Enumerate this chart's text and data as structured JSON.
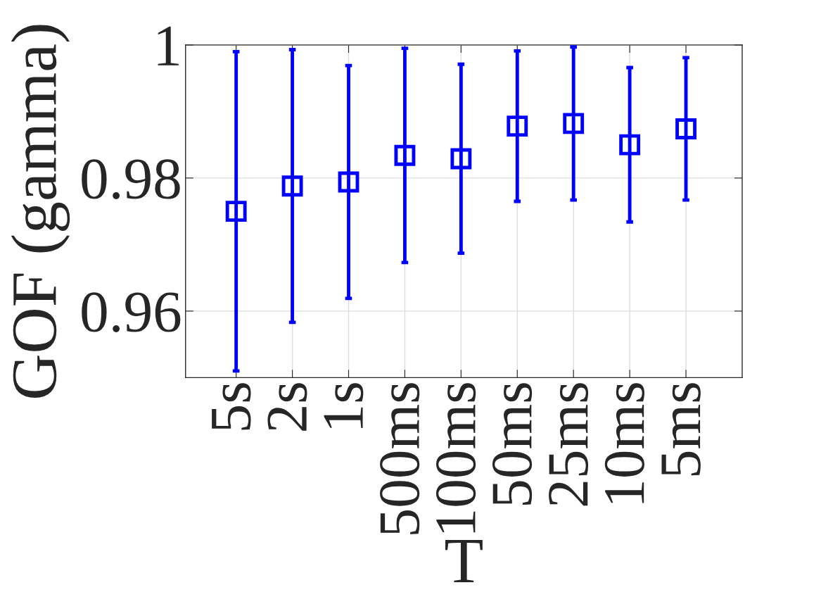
{
  "chart_data": {
    "type": "scatter",
    "xlabel": "T",
    "ylabel": "GOF (gamma)",
    "categories": [
      "5s",
      "2s",
      "1s",
      "500ms",
      "100ms",
      "50ms",
      "25ms",
      "10ms",
      "5ms"
    ],
    "series": [
      {
        "color": "#0000ff",
        "values": [
          0.975,
          0.9788,
          0.9794,
          0.9834,
          0.9829,
          0.9878,
          0.9882,
          0.985,
          0.9874
        ],
        "errors": [
          0.024,
          0.0205,
          0.0175,
          0.0161,
          0.0142,
          0.0113,
          0.0115,
          0.0116,
          0.0107
        ]
      }
    ],
    "ylim": [
      0.95,
      1
    ],
    "yticks": [
      0.96,
      0.98,
      1
    ],
    "grid": true,
    "marker": "square",
    "legend": false
  }
}
